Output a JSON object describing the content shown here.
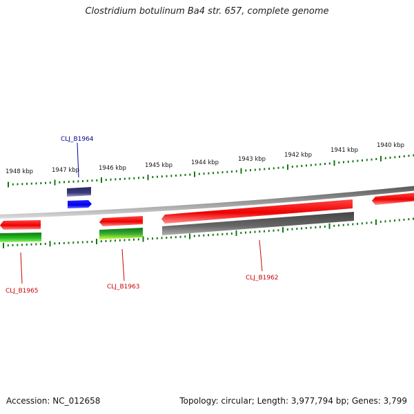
{
  "title": "Clostridium botulinum Ba4 str. 657, complete genome",
  "footer": {
    "accession": "Accession: NC_012658",
    "summary": "Topology: circular; Length: 3,977,794 bp; Genes: 3,799"
  },
  "scale_labels": [
    "1948 kbp",
    "1947 kbp",
    "1946 kbp",
    "1945 kbp",
    "1944 kbp",
    "1943 kbp",
    "1942 kbp",
    "1941 kbp",
    "1940 kbp"
  ],
  "gene_labels": [
    {
      "text": "CLJ_B1964",
      "color": "#00008b"
    },
    {
      "text": "CLJ_B1965",
      "color": "#cc0000"
    },
    {
      "text": "CLJ_B1963",
      "color": "#cc0000"
    },
    {
      "text": "CLJ_B1962",
      "color": "#cc0000"
    }
  ],
  "colors": {
    "forward_gene": "#ee1111",
    "reverse_gene_blue": "#0000ee",
    "rna_gene": "#3a3a7a",
    "green_feature": "#22aa22",
    "grey_feature": "#666666",
    "tick_green": "#117711",
    "backbone": "#8a8a8a"
  }
}
